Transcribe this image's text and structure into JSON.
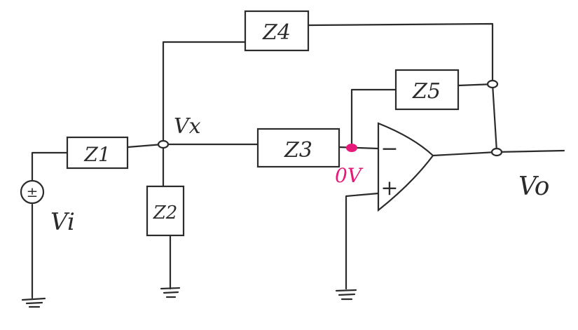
{
  "components": {
    "z1": {
      "label": "Z1"
    },
    "z2": {
      "label": "Z2"
    },
    "z3": {
      "label": "Z3"
    },
    "z4": {
      "label": "Z4"
    },
    "z5": {
      "label": "Z5"
    }
  },
  "nodes": {
    "vx": {
      "label": "Vx"
    },
    "inverting": {
      "label": "0V",
      "color": "#e6197a"
    }
  },
  "source": {
    "label": "Vi",
    "symbol": "±"
  },
  "output": {
    "label": "Vo"
  },
  "opamp": {
    "minus_label": "−",
    "plus_label": "+"
  }
}
